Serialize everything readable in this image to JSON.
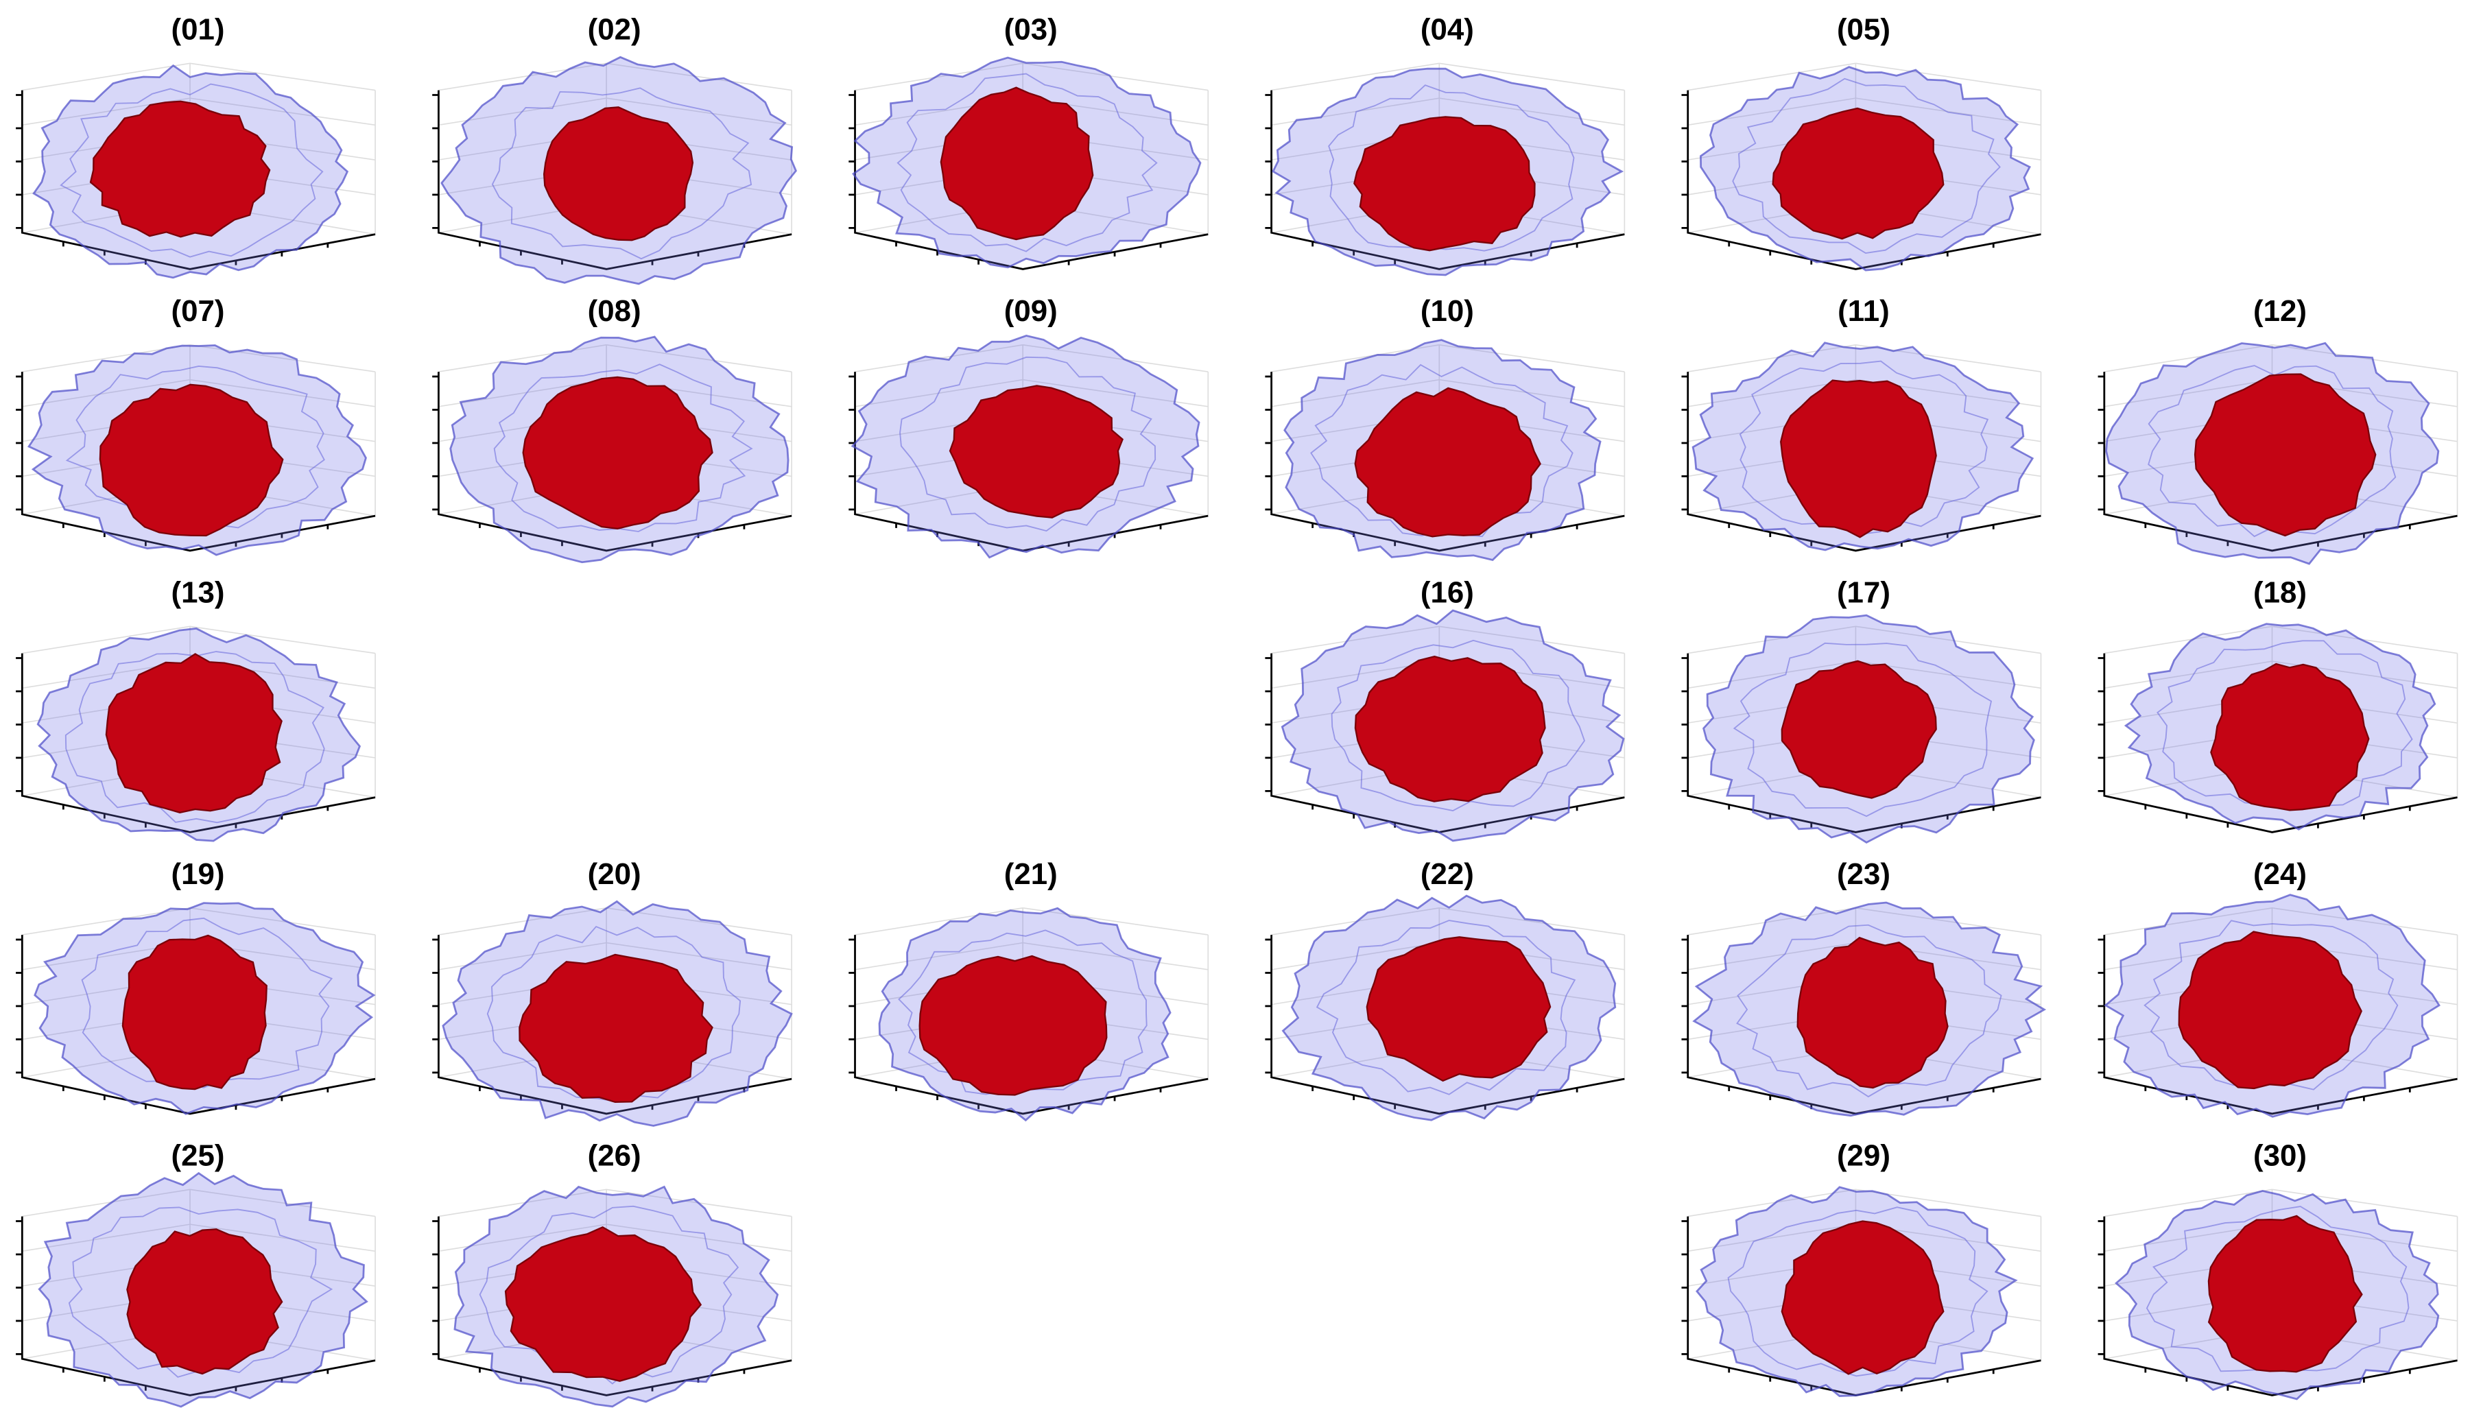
{
  "rows": [
    [
      "(01)",
      "(02)",
      "(03)",
      "(04)",
      "(05)",
      null
    ],
    [
      "(07)",
      "(08)",
      "(09)",
      "(10)",
      "(11)",
      "(12)"
    ],
    [
      "(13)",
      null,
      null,
      "(16)",
      "(17)",
      "(18)"
    ],
    [
      "(19)",
      "(20)",
      "(21)",
      "(22)",
      "(23)",
      "(24)"
    ],
    [
      "(25)",
      "(26)",
      null,
      null,
      "(29)",
      "(30)"
    ]
  ]
}
